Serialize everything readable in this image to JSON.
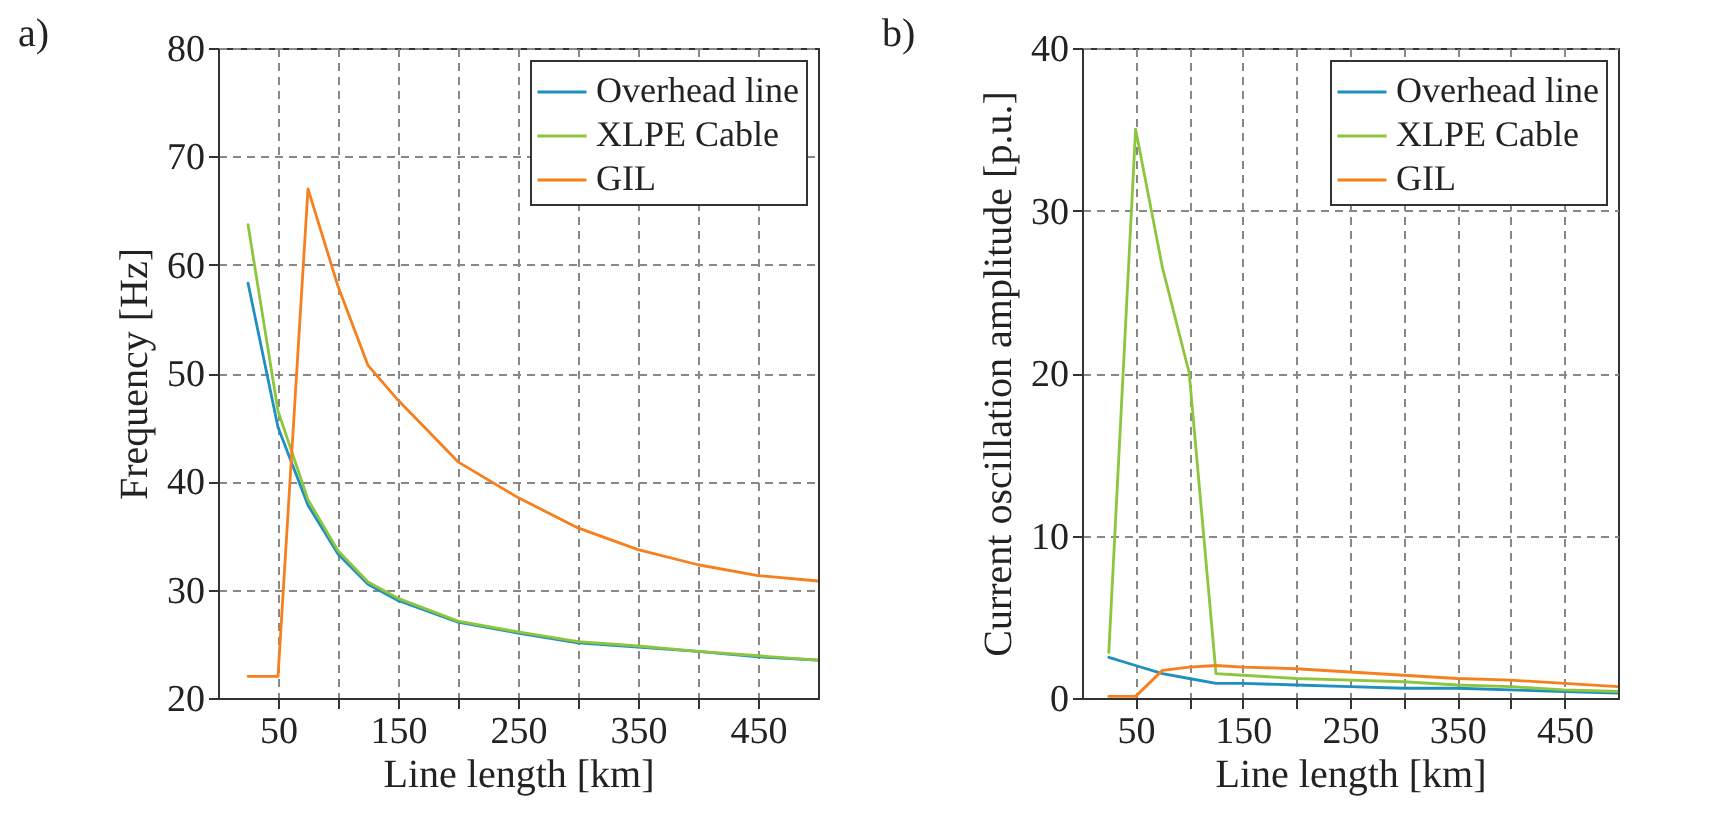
{
  "chart_data": [
    {
      "type": "line",
      "title": "a)",
      "xlabel": "Line length [km]",
      "ylabel": "Frequency [Hz]",
      "x": [
        25,
        50,
        75,
        100,
        125,
        150,
        200,
        250,
        300,
        350,
        400,
        450,
        500
      ],
      "series": [
        {
          "name": "Overhead line",
          "color": "#1f8fbf",
          "values": [
            58.3,
            45,
            37.8,
            33.3,
            30.5,
            29,
            27,
            26,
            25.1,
            24.7,
            24.3,
            23.8,
            23.5
          ]
        },
        {
          "name": "XLPE Cable",
          "color": "#8cc63f",
          "values": [
            63.7,
            46.5,
            38.3,
            33.6,
            30.7,
            29.2,
            27.1,
            26.1,
            25.2,
            24.8,
            24.3,
            23.9,
            23.5
          ]
        },
        {
          "name": "GIL",
          "color": "#f7801e",
          "values": [
            22,
            22,
            67,
            58,
            50.7,
            47.5,
            41.8,
            38.5,
            35.7,
            33.7,
            32.3,
            31.3,
            30.8
          ]
        }
      ],
      "xlim": [
        0,
        500
      ],
      "xticks": [
        50,
        {
          "value": 100,
          "label": null
        },
        150,
        {
          "value": 200,
          "label": null
        },
        250,
        {
          "value": 300,
          "label": null
        },
        350,
        {
          "value": 400,
          "label": null
        },
        450
      ],
      "ylim": [
        20,
        80
      ],
      "yticks": [
        20,
        30,
        40,
        50,
        60,
        70,
        80
      ],
      "grid": true,
      "legend": "top right",
      "line_style": "solid"
    },
    {
      "type": "line",
      "title": "b)",
      "xlabel": "Line length [km]",
      "ylabel": "Current oscillation amplitude [p.u.]",
      "x": [
        25,
        50,
        75,
        100,
        125,
        150,
        200,
        250,
        300,
        350,
        400,
        450,
        500
      ],
      "series": [
        {
          "name": "Overhead line",
          "color": "#1f8fbf",
          "values": [
            2.5,
            2,
            1.5,
            1.2,
            0.9,
            0.9,
            0.8,
            0.7,
            0.6,
            0.6,
            0.5,
            0.4,
            0.3
          ]
        },
        {
          "name": "XLPE Cable",
          "color": "#8cc63f",
          "values": [
            2.8,
            35,
            26.5,
            20,
            1.5,
            1.4,
            1.2,
            1.1,
            1,
            0.8,
            0.7,
            0.5,
            0.4
          ]
        },
        {
          "name": "GIL",
          "color": "#f7801e",
          "values": [
            0.1,
            0.1,
            1.7,
            1.9,
            2,
            1.9,
            1.8,
            1.6,
            1.4,
            1.2,
            1.1,
            0.9,
            0.7
          ]
        }
      ],
      "xlim": [
        0,
        500
      ],
      "xticks": [
        50,
        {
          "value": 100,
          "label": null
        },
        150,
        {
          "value": 200,
          "label": null
        },
        250,
        {
          "value": 300,
          "label": null
        },
        350,
        {
          "value": 400,
          "label": null
        },
        450
      ],
      "ylim": [
        0,
        40
      ],
      "yticks": [
        0,
        10,
        20,
        30,
        40
      ],
      "grid": true,
      "legend": "top right",
      "line_style": "solid"
    }
  ]
}
